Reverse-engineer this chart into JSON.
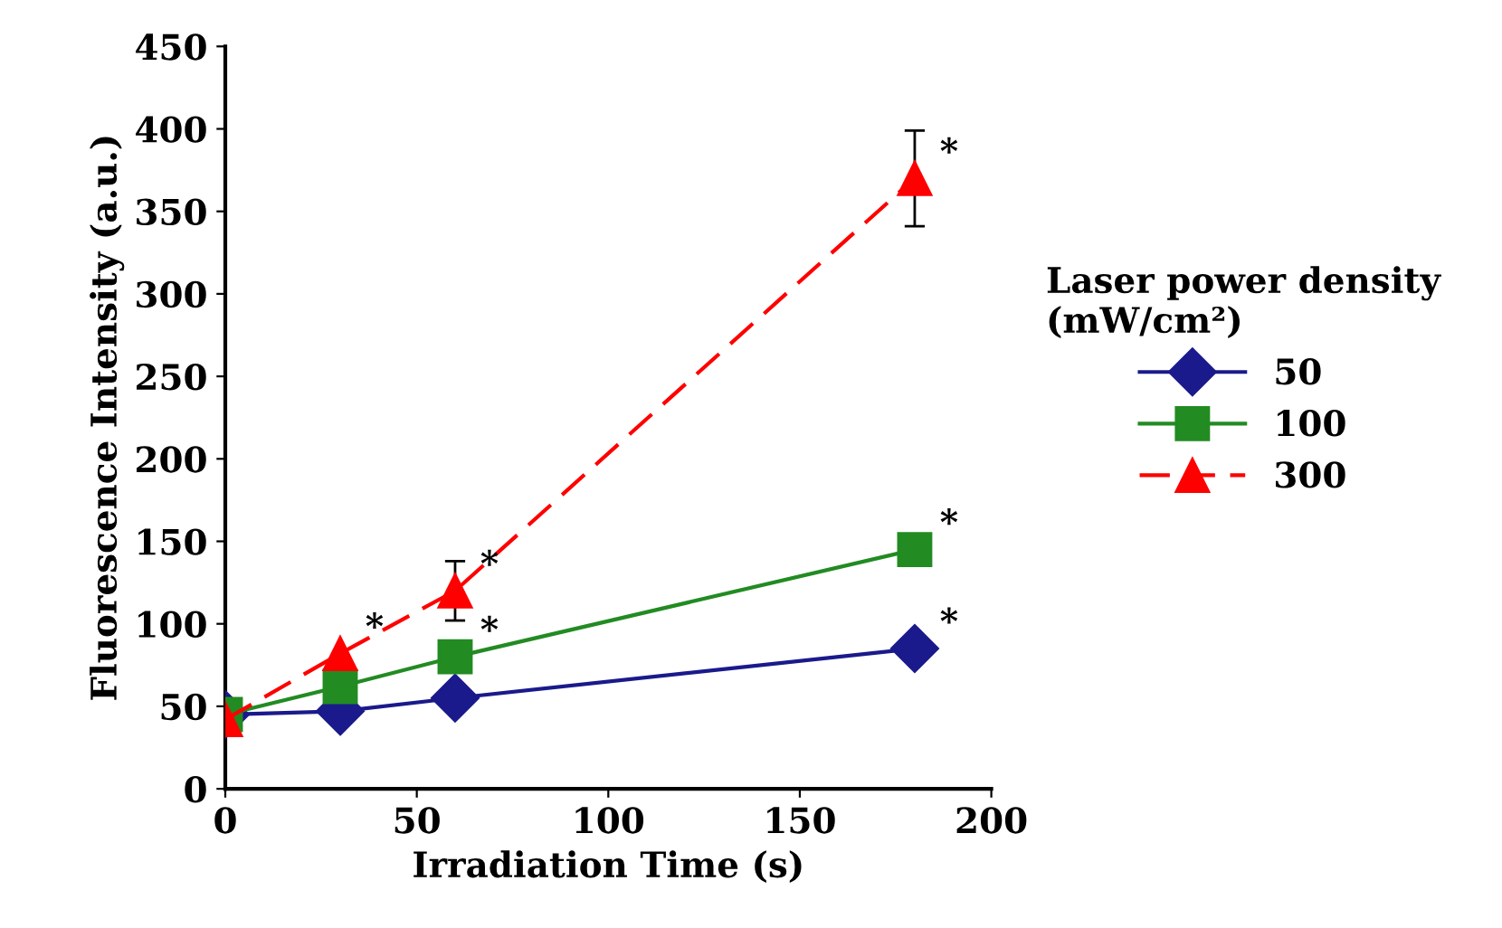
{
  "chart_data": {
    "type": "line",
    "xlabel": "Irradiation Time (s)",
    "ylabel": "Fluorescence Intensity (a.u.)",
    "legend_title": "Laser power density\n(mW/cm²)",
    "legend": "right",
    "grid": false,
    "x": [
      0,
      30,
      60,
      180
    ],
    "xlim": [
      0,
      200
    ],
    "xticks": [
      0,
      50,
      100,
      150,
      200
    ],
    "ylim": [
      0,
      450
    ],
    "yticks": [
      0,
      50,
      100,
      150,
      200,
      250,
      300,
      350,
      400,
      450
    ],
    "series": [
      {
        "name": "50",
        "color": "#1a1a8c",
        "marker": "diamond",
        "line_style": "solid",
        "values": [
          45,
          47,
          55,
          85
        ]
      },
      {
        "name": "100",
        "color": "#228b22",
        "marker": "square",
        "line_style": "solid",
        "values": [
          45,
          62,
          80,
          145
        ]
      },
      {
        "name": "300",
        "color": "#ff0000",
        "marker": "triangle",
        "line_style": "dashed",
        "values": [
          42,
          82,
          120,
          370
        ],
        "errors": [
          null,
          null,
          18,
          29
        ]
      }
    ],
    "annotations": [
      {
        "text": "*",
        "x": 30,
        "y": 82
      },
      {
        "text": "*",
        "x": 60,
        "y": 120
      },
      {
        "text": "*",
        "x": 180,
        "y": 370
      },
      {
        "text": "*",
        "x": 60,
        "y": 80
      },
      {
        "text": "*",
        "x": 180,
        "y": 145
      },
      {
        "text": "*",
        "x": 180,
        "y": 85
      }
    ]
  }
}
